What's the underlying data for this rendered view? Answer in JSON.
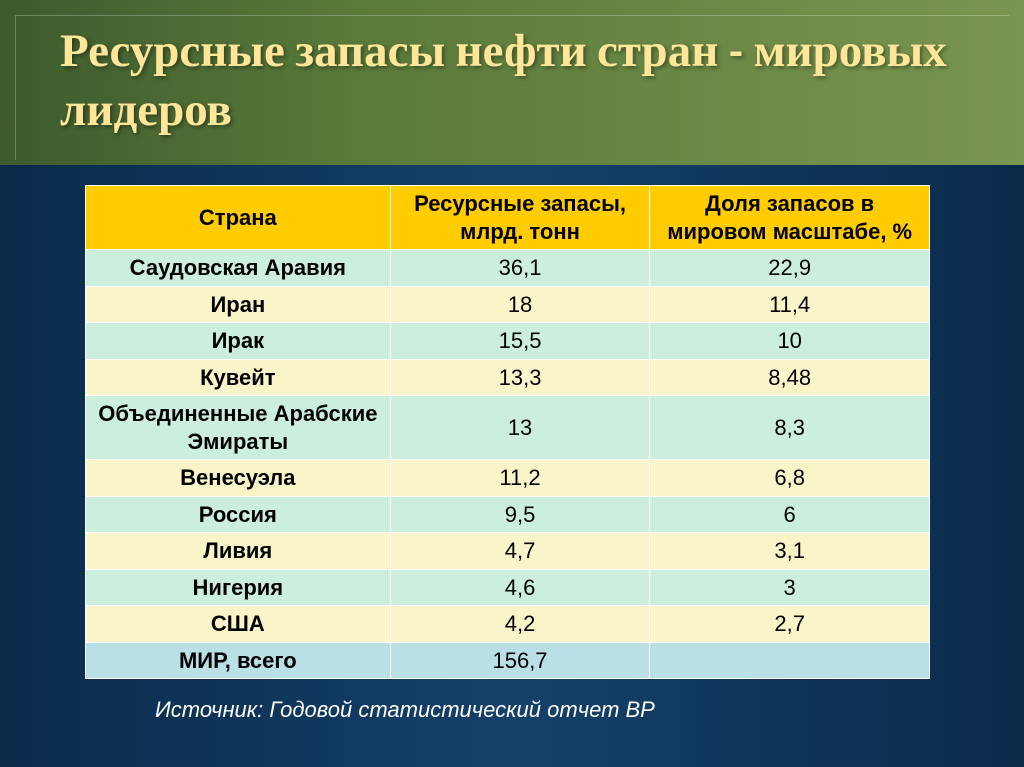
{
  "title": "Ресурсные запасы нефти стран - мировых лидеров",
  "table": {
    "headers": [
      "Страна",
      "Ресурсные запасы, млрд. тонн",
      "Доля запасов в мировом масштабе, %"
    ],
    "col_widths": [
      "305px",
      "260px",
      "280px"
    ],
    "header_bg": "#ffcc00",
    "row_colors": {
      "green": "#cceedd",
      "yellow": "#faf5c8",
      "blue": "#b8e0e6"
    },
    "rows": [
      {
        "cls": "green",
        "c": "Саудовская Аравия",
        "v1": "36,1",
        "v2": "22,9"
      },
      {
        "cls": "yellow",
        "c": "Иран",
        "v1": "18",
        "v2": "11,4"
      },
      {
        "cls": "green",
        "c": "Ирак",
        "v1": "15,5",
        "v2": "10"
      },
      {
        "cls": "yellow",
        "c": "Кувейт",
        "v1": "13,3",
        "v2": "8,48"
      },
      {
        "cls": "green",
        "c": "Объединенные Арабские Эмираты",
        "v1": "13",
        "v2": "8,3"
      },
      {
        "cls": "yellow",
        "c": "Венесуэла",
        "v1": "11,2",
        "v2": "6,8"
      },
      {
        "cls": "green",
        "c": "Россия",
        "v1": "9,5",
        "v2": "6"
      },
      {
        "cls": "yellow",
        "c": "Ливия",
        "v1": "4,7",
        "v2": "3,1"
      },
      {
        "cls": "green",
        "c": "Нигерия",
        "v1": "4,6",
        "v2": "3"
      },
      {
        "cls": "yellow",
        "c": "США",
        "v1": "4,2",
        "v2": "2,7"
      },
      {
        "cls": "blue",
        "c": "МИР, всего",
        "v1": "156,7",
        "v2": ""
      }
    ]
  },
  "source": "Источник: Годовой статистический отчет BP",
  "colors": {
    "title_text": "#ffe699",
    "title_bg_left": "#3d5a2e",
    "title_bg_right": "#7a9650",
    "body_bg": "#0a2a4a"
  }
}
